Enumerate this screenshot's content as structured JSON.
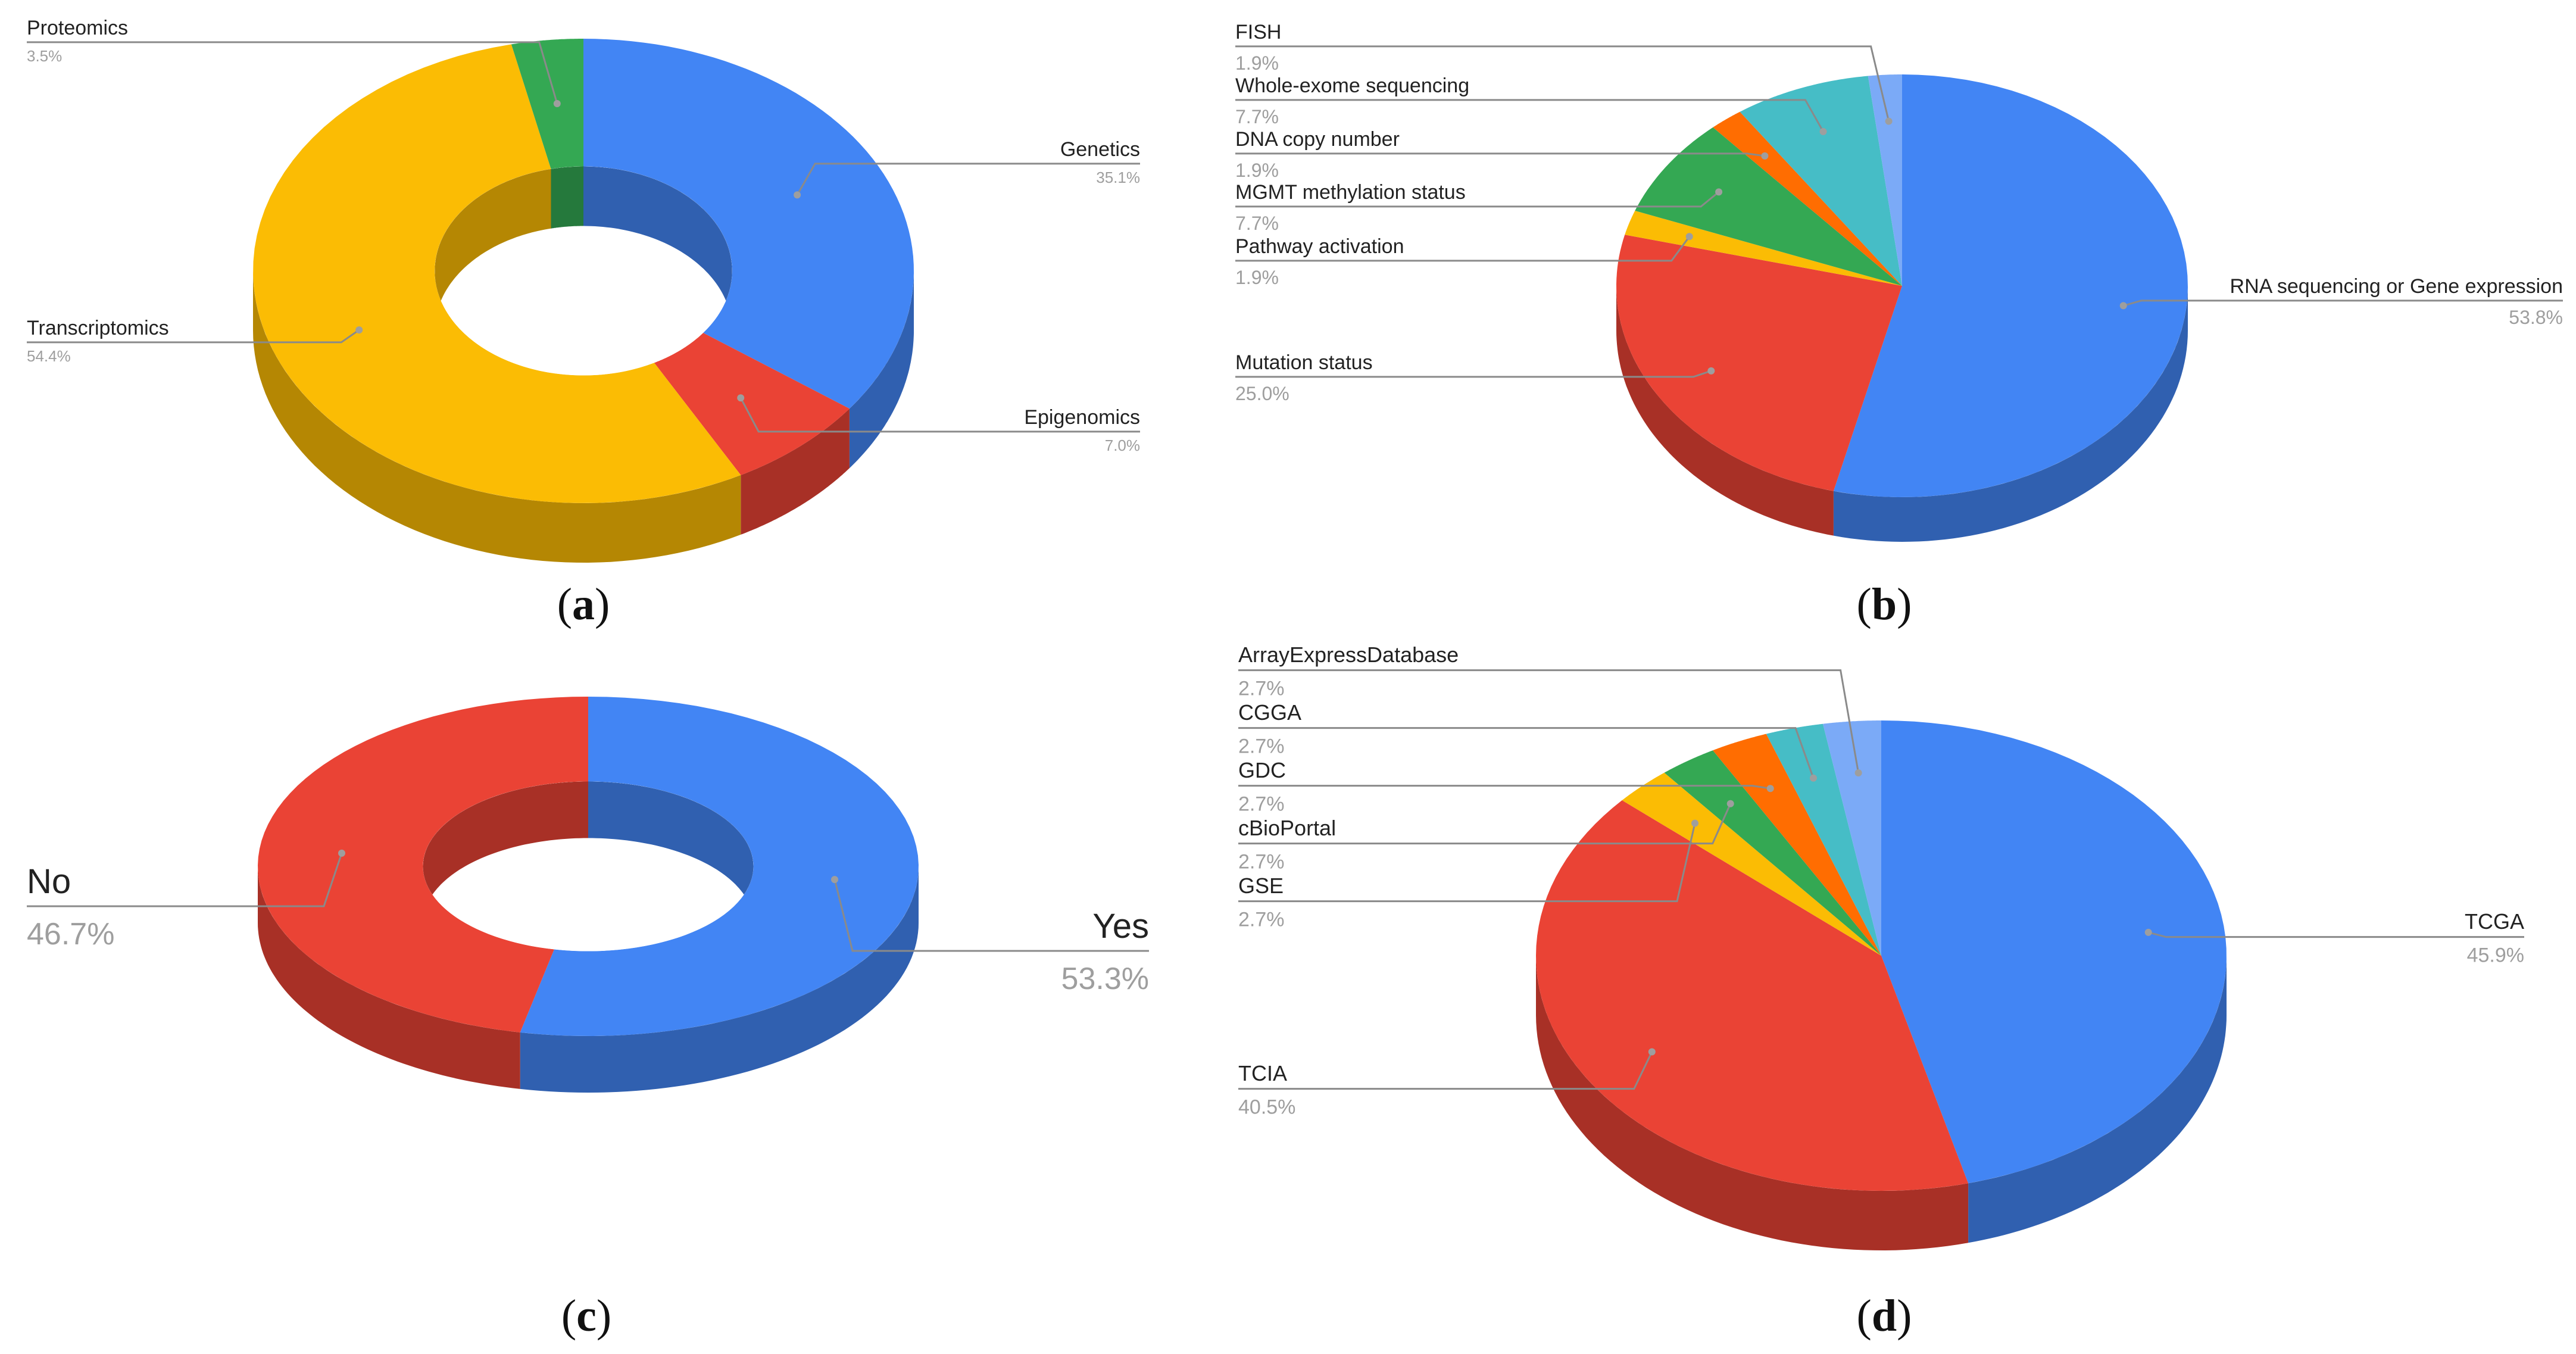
{
  "chart_data": [
    {
      "panel": "(a)",
      "type": "pie",
      "title": "",
      "categories": [
        "Genetics",
        "Epigenomics",
        "Transcriptomics",
        "Proteomics"
      ],
      "values": [
        35.1,
        7.0,
        54.4,
        3.5
      ],
      "labels": [
        "35.1%",
        "7.0%",
        "54.4%",
        "3.5%"
      ],
      "colors": [
        "#4285f4",
        "#ea4335",
        "#fbbc04",
        "#34a853"
      ],
      "style": "3d-donut",
      "legend": "none"
    },
    {
      "panel": "(b)",
      "type": "pie",
      "title": "",
      "categories": [
        "RNA sequencing or Gene expression",
        "Mutation status",
        "Pathway activation",
        "MGMT methylation status",
        "DNA copy number",
        "Whole-exome sequencing",
        "FISH"
      ],
      "values": [
        53.8,
        25.0,
        1.9,
        7.7,
        1.9,
        7.7,
        1.9
      ],
      "labels": [
        "53.8%",
        "25.0%",
        "1.9%",
        "7.7%",
        "1.9%",
        "7.7%",
        "1.9%"
      ],
      "colors": [
        "#4285f4",
        "#ea4335",
        "#fbbc04",
        "#34a853",
        "#ff6d01",
        "#46bdc6",
        "#7baaf7"
      ],
      "style": "3d-pie",
      "legend": "none"
    },
    {
      "panel": "(c)",
      "type": "pie",
      "title": "",
      "categories": [
        "Yes",
        "No"
      ],
      "values": [
        53.3,
        46.7
      ],
      "labels": [
        "53.3%",
        "46.7%"
      ],
      "colors": [
        "#4285f4",
        "#ea4335"
      ],
      "style": "3d-donut",
      "legend": "none"
    },
    {
      "panel": "(d)",
      "type": "pie",
      "title": "",
      "categories": [
        "TCGA",
        "TCIA",
        "GSE",
        "cBioPortal",
        "GDC",
        "CGGA",
        "ArrayExpressDatabase"
      ],
      "values": [
        45.9,
        40.5,
        2.7,
        2.7,
        2.7,
        2.7,
        2.7
      ],
      "labels": [
        "45.9%",
        "40.5%",
        "2.7%",
        "2.7%",
        "2.7%",
        "2.7%",
        "2.7%"
      ],
      "colors": [
        "#4285f4",
        "#ea4335",
        "#fbbc04",
        "#34a853",
        "#ff6d01",
        "#46bdc6",
        "#7baaf7"
      ],
      "style": "3d-pie",
      "legend": "none"
    }
  ],
  "captions": {
    "a": {
      "open": "(",
      "letter": "a",
      "close": ")"
    },
    "b": {
      "open": "(",
      "letter": "b",
      "close": ")"
    },
    "c": {
      "open": "(",
      "letter": "c",
      "close": ")"
    },
    "d": {
      "open": "(",
      "letter": "d",
      "close": ")"
    }
  }
}
